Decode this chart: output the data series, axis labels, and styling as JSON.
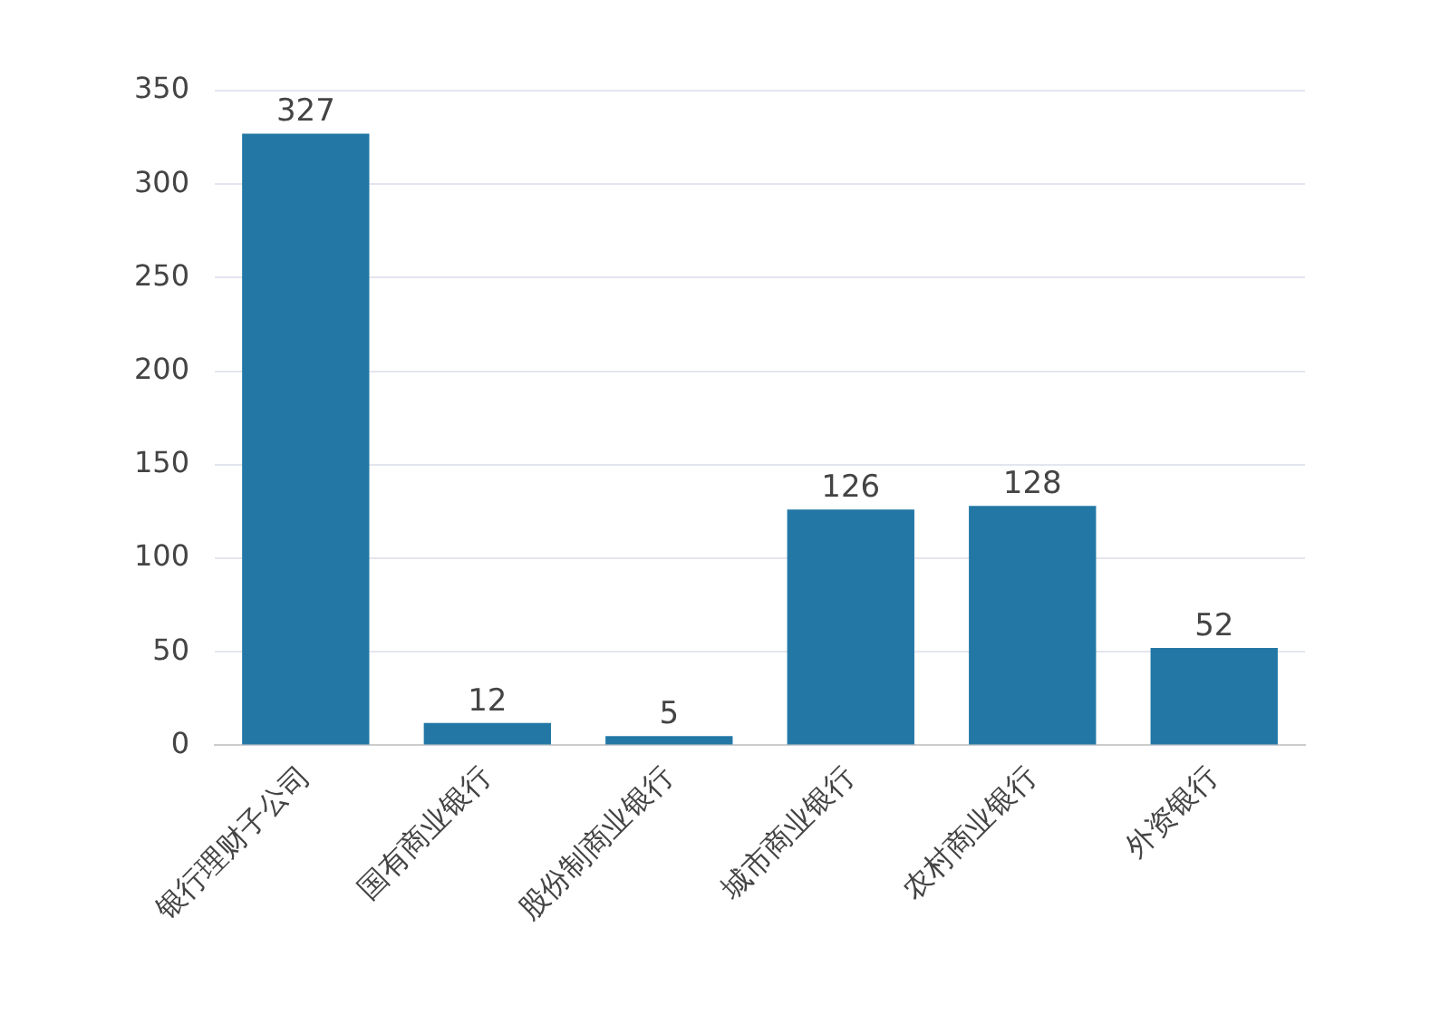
{
  "chart_data": {
    "type": "bar",
    "categories": [
      "银行理财子公司",
      "国有商业银行",
      "股份制商业银行",
      "城市商业银行",
      "农村商业银行",
      "外资银行"
    ],
    "values": [
      327,
      12,
      5,
      126,
      128,
      52
    ],
    "color": "#2277a5",
    "ylim": [
      0,
      350
    ],
    "yticks": [
      0,
      50,
      100,
      150,
      200,
      250,
      300,
      350
    ],
    "grid": "y",
    "data_labels": true,
    "legend": false
  }
}
